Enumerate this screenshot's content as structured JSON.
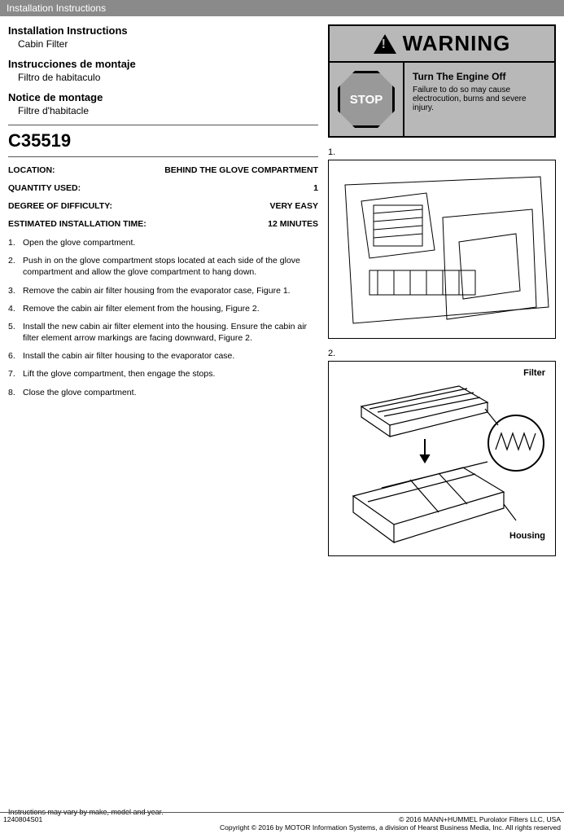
{
  "header": {
    "title": "Installation Instructions"
  },
  "titles": {
    "en": {
      "main": "Installation Instructions",
      "sub": "Cabin Filter"
    },
    "es": {
      "main": "Instrucciones de montaje",
      "sub": "Filtro de habitaculo"
    },
    "fr": {
      "main": "Notice de montage",
      "sub": "Filtre d'habitacle"
    }
  },
  "part_number": "C35519",
  "specs": {
    "location": {
      "label": "LOCATION:",
      "value": "BEHIND THE GLOVE COMPARTMENT"
    },
    "quantity": {
      "label": "QUANTITY USED:",
      "value": "1"
    },
    "difficulty": {
      "label": "DEGREE OF DIFFICULTY:",
      "value": "VERY EASY"
    },
    "time": {
      "label": "ESTIMATED INSTALLATION TIME:",
      "value": "12 MINUTES"
    }
  },
  "steps": [
    "Open the glove compartment.",
    "Push in on the glove compartment stops located at each side of the glove compartment and allow the glove compartment to hang down.",
    "Remove the cabin air filter housing from the evaporator case, Figure 1.",
    "Remove the cabin air filter element from the housing, Figure 2.",
    "Install the new cabin air filter element into the housing. Ensure the cabin air filter element arrow markings are facing downward, Figure 2.",
    "Install the cabin air filter housing to the evaporator case.",
    "Lift the glove compartment, then engage the stops.",
    "Close the glove compartment."
  ],
  "warning": {
    "word": "WARNING",
    "stop": "STOP",
    "title": "Turn The Engine Off",
    "body": "Failure to do so may cause electrocution, burns and severe injury."
  },
  "figures": {
    "fig1": {
      "num": "1."
    },
    "fig2": {
      "num": "2.",
      "label_filter": "Filter",
      "label_housing": "Housing"
    }
  },
  "footer": {
    "note": "Instructions may vary by make, model and year.",
    "doc_id": "1240804S01",
    "copyright1": "© 2016 MANN+HUMMEL Purolator Filters LLC, USA",
    "copyright2": "Copyright © 2016 by MOTOR Information Systems, a division of Hearst Business Media, Inc. All rights reserved"
  },
  "colors": {
    "header_bg": "#8a8a8a",
    "warning_bg": "#b8b8b8",
    "border": "#000000",
    "text": "#000000"
  }
}
